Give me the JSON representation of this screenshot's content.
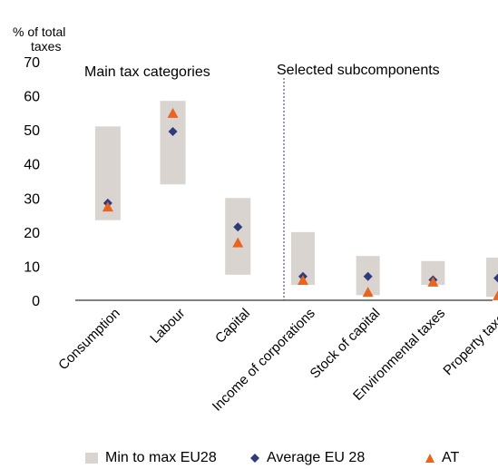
{
  "chart_data": {
    "type": "range-dot",
    "ylabel": "% of total taxes",
    "ylim": [
      0,
      70
    ],
    "yticks": [
      0,
      10,
      20,
      30,
      40,
      50,
      60,
      70
    ],
    "grid": false,
    "group_labels": [
      "Main tax categories",
      "Selected subcomponents"
    ],
    "categories": [
      "Consumption",
      "Labour",
      "Capital",
      "Income of corporations",
      "Stock of capital",
      "Environmental taxes",
      "Property taxes"
    ],
    "series": [
      {
        "name": "Min to max EU28",
        "kind": "range",
        "color": "#d9d4cf",
        "min": [
          23.5,
          34,
          7.5,
          4.5,
          1.5,
          4.5,
          1
        ],
        "max": [
          51,
          58.5,
          30,
          20,
          13,
          11.5,
          12.5
        ]
      },
      {
        "name": "Average EU 28",
        "kind": "diamond",
        "color": "#2e3a7c",
        "values": [
          28.5,
          49.5,
          21.5,
          7,
          7,
          6,
          6.5
        ]
      },
      {
        "name": "AT",
        "kind": "triangle",
        "color": "#e8641f",
        "values": [
          27.5,
          55,
          17,
          6,
          2.5,
          5.5,
          1.5
        ]
      }
    ],
    "legend_position": "bottom"
  }
}
